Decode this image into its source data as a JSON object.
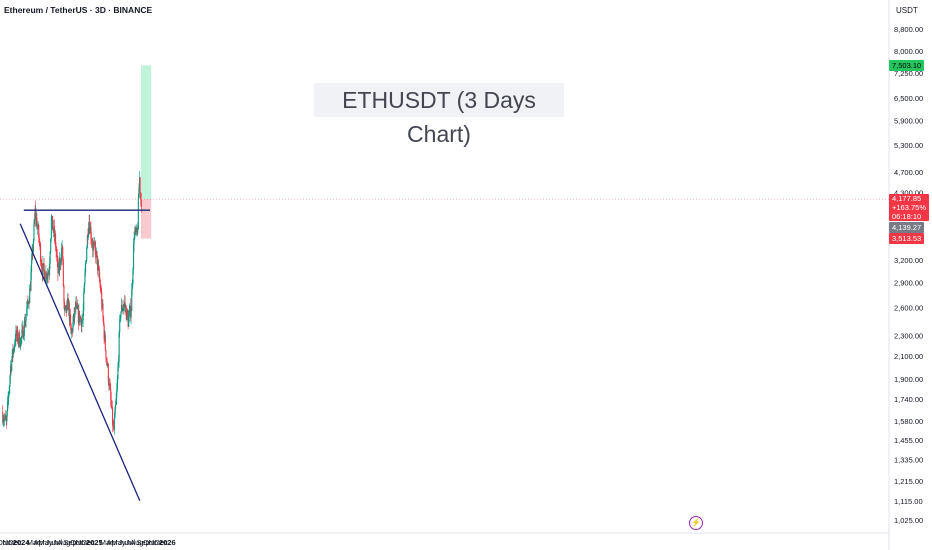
{
  "header": {
    "symbol_text": "Ethereum / TetherUS · 3D · BINANCE",
    "watermark_text": "ETHUSDT (3 Days Chart)",
    "price_unit": "USDT"
  },
  "colors": {
    "up": "#089981",
    "down": "#f23645",
    "trendline": "#1a237e",
    "target_zone": "#b9f3d6",
    "stop_zone": "#f7c4c8",
    "price_line": "#f23645"
  },
  "icons": {
    "event_marker": "lightning-icon"
  },
  "chart_data": {
    "type": "candlestick",
    "title": "ETHUSDT (3 Days Chart)",
    "y_scale": "log",
    "ylim": [
      960,
      9200
    ],
    "y_ticks": [
      "8,800.00",
      "8,000.00",
      "7,250.00",
      "6,500.00",
      "5,900.00",
      "5,300.00",
      "4,700.00",
      "4,300.00",
      "3,200.00",
      "2,900.00",
      "2,600.00",
      "2,300.00",
      "2,100.00",
      "1,900.00",
      "1,740.00",
      "1,580.00",
      "1,455.00",
      "1,335.00",
      "1,215.00",
      "1,115.00",
      "1,025.00"
    ],
    "x_ticks": [
      "Oct",
      "Nov",
      "Dec",
      "2024",
      "Mar",
      "Apr",
      "May",
      "Jun",
      "Jul",
      "Aug",
      "Sep",
      "Oct",
      "Nov",
      "Dec",
      "2025",
      "Mar",
      "Apr",
      "May",
      "Jun",
      "Jul",
      "Aug",
      "Sep",
      "Oct",
      "Nov",
      "Dec",
      "2026"
    ],
    "x_tick_dates": [
      "2023-10-01",
      "2023-11-01",
      "2023-12-01",
      "2024-01-01",
      "2024-03-01",
      "2024-04-01",
      "2024-05-01",
      "2024-06-01",
      "2024-07-01",
      "2024-08-01",
      "2024-09-01",
      "2024-10-01",
      "2024-11-01",
      "2024-12-01",
      "2025-01-01",
      "2025-03-01",
      "2025-04-01",
      "2025-05-01",
      "2025-06-01",
      "2025-07-01",
      "2025-08-01",
      "2025-09-01",
      "2025-10-01",
      "2025-11-01",
      "2025-12-01",
      "2026-01-01"
    ],
    "price_path": [
      [
        "2023-09-29",
        1640
      ],
      [
        "2023-10-20",
        1560
      ],
      [
        "2023-11-10",
        2000
      ],
      [
        "2023-12-05",
        2300
      ],
      [
        "2024-01-01",
        2250
      ],
      [
        "2024-01-22",
        2450
      ],
      [
        "2024-02-15",
        2800
      ],
      [
        "2024-03-12",
        3950
      ],
      [
        "2024-03-28",
        3600
      ],
      [
        "2024-04-15",
        3100
      ],
      [
        "2024-05-01",
        3000
      ],
      [
        "2024-05-20",
        3050
      ],
      [
        "2024-06-01",
        3800
      ],
      [
        "2024-06-20",
        3500
      ],
      [
        "2024-07-05",
        3000
      ],
      [
        "2024-07-25",
        3400
      ],
      [
        "2024-08-05",
        2500
      ],
      [
        "2024-08-25",
        2650
      ],
      [
        "2024-09-08",
        2300
      ],
      [
        "2024-09-30",
        2600
      ],
      [
        "2024-10-15",
        2500
      ],
      [
        "2024-11-05",
        2450
      ],
      [
        "2024-11-20",
        3200
      ],
      [
        "2024-12-05",
        3850
      ],
      [
        "2024-12-25",
        3400
      ],
      [
        "2025-01-10",
        3300
      ],
      [
        "2025-02-03",
        2800
      ],
      [
        "2025-02-25",
        2200
      ],
      [
        "2025-03-15",
        1900
      ],
      [
        "2025-04-08",
        1500
      ],
      [
        "2025-04-25",
        1800
      ],
      [
        "2025-05-12",
        2550
      ],
      [
        "2025-06-01",
        2650
      ],
      [
        "2025-06-20",
        2450
      ],
      [
        "2025-07-05",
        2600
      ],
      [
        "2025-07-20",
        3600
      ],
      [
        "2025-08-05",
        3550
      ],
      [
        "2025-08-15",
        4650
      ],
      [
        "2025-08-22",
        4180
      ]
    ],
    "trendlines": [
      {
        "name": "Resistance",
        "from": [
          "2024-01-14",
          3980
        ],
        "to": [
          "2025-10-06",
          3980
        ]
      },
      {
        "name": "Descending support",
        "from": [
          "2023-12-27",
          3750
        ],
        "to": [
          "2025-08-16",
          1115
        ]
      }
    ],
    "position": {
      "start": "2025-08-22",
      "end": "2025-10-12",
      "entry": 4177.85,
      "target": 7503.1,
      "stop": 3513.53
    },
    "price_labels": {
      "target": "7,503.10",
      "current": "4,177.85",
      "change": "+163.75%",
      "countdown": "06:18:10",
      "line_price": "4,139.27",
      "stop": "3,513.53"
    }
  }
}
